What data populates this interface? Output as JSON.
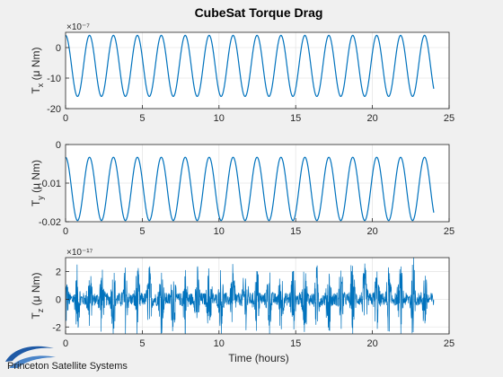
{
  "chart_data": {
    "type": "line",
    "title": "CubeSat Torque Drag",
    "xlabel": "Time (hours)",
    "xlim": [
      0,
      25
    ],
    "xticks": [
      0,
      5,
      10,
      15,
      20,
      25
    ],
    "series_color": "#0072bd",
    "panels": [
      {
        "name": "tx",
        "ylabel": {
          "base": "T",
          "sub": "x",
          "unit": "(μ Nm)"
        },
        "exponent": "×10⁻⁷",
        "ylim": [
          -20,
          5
        ],
        "yticks": [
          0,
          -10,
          -20
        ],
        "grid": true,
        "pattern": {
          "kind": "periodic",
          "period_hours": 1.56,
          "min": -16,
          "max": 4,
          "start": 0,
          "end": 24
        },
        "x": [
          0,
          0.39,
          0.78,
          1.17,
          1.56,
          1.95,
          2.34,
          2.73,
          3.12
        ],
        "y": [
          4,
          -6,
          -16,
          -6,
          4,
          -6,
          -16,
          -6,
          4
        ]
      },
      {
        "name": "ty",
        "ylabel": {
          "base": "T",
          "sub": "y",
          "unit": "(μ Nm)"
        },
        "exponent": "",
        "ylim": [
          -0.02,
          0
        ],
        "yticks": [
          0,
          -0.01,
          -0.02
        ],
        "ytick_labels": [
          "0",
          "-0.01",
          "-0.02"
        ],
        "grid": true,
        "pattern": {
          "kind": "periodic",
          "period_hours": 1.56,
          "min": -0.0197,
          "max": -0.0033,
          "start": 0,
          "end": 24
        },
        "x": [
          0,
          0.39,
          0.78,
          1.17,
          1.56,
          1.95,
          2.34,
          2.73,
          3.12
        ],
        "y": [
          -0.0033,
          -0.0115,
          -0.0197,
          -0.0115,
          -0.0033,
          -0.0115,
          -0.0197,
          -0.0115,
          -0.0033
        ]
      },
      {
        "name": "tz",
        "ylabel": {
          "base": "T",
          "sub": "z",
          "unit": "(μ Nm)"
        },
        "exponent": "×10⁻¹⁷",
        "ylim": [
          -2.5,
          3
        ],
        "yticks": [
          2,
          0,
          -2
        ],
        "grid": true,
        "pattern": {
          "kind": "noise",
          "amplitude": 2.6,
          "burst_period_hours": 0.78,
          "start": 0,
          "end": 24
        },
        "x": [
          0,
          1.56,
          3.12,
          4.68,
          6.24,
          7.8,
          9.36,
          9.8,
          10.92
        ],
        "y": [
          0,
          1.8,
          -1.5,
          2.0,
          -1.6,
          1.4,
          -2.2,
          2.8,
          1.2
        ]
      }
    ]
  },
  "brand": {
    "name": "Princeton Satellite Systems",
    "logo": "swoosh-logo",
    "logo_color": "#1f5aa6"
  },
  "colors": {
    "figure_bg": "#f0f0f0",
    "axes_bg": "#ffffff",
    "axis": "#262626",
    "grid": "#e6e6e6"
  }
}
